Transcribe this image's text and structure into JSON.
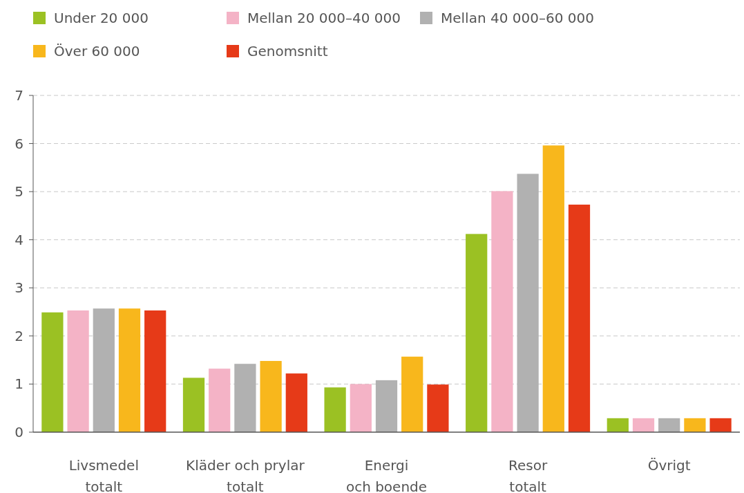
{
  "chart_data": {
    "type": "bar",
    "categories": [
      "Livsmedel\ntotalt",
      "Kläder och prylar\ntotalt",
      "Energi\noch boende",
      "Resor\ntotalt",
      "Övrigt"
    ],
    "series": [
      {
        "name": "Under 20 000",
        "color": "#9bc123",
        "values": [
          2.49,
          1.13,
          0.93,
          4.12,
          0.29
        ]
      },
      {
        "name": "Mellan 20 000–40 000",
        "color": "#f4b3c6",
        "values": [
          2.53,
          1.32,
          1.0,
          5.01,
          0.29
        ]
      },
      {
        "name": "Mellan 40 000–60 000",
        "color": "#b1b1b1",
        "values": [
          2.57,
          1.42,
          1.08,
          5.37,
          0.29
        ]
      },
      {
        "name": "Över 60 000",
        "color": "#f8b71c",
        "values": [
          2.57,
          1.48,
          1.57,
          5.96,
          0.29
        ]
      },
      {
        "name": "Genomsnitt",
        "color": "#e63a18",
        "values": [
          2.53,
          1.22,
          0.99,
          4.73,
          0.29
        ]
      }
    ],
    "ylim": [
      0,
      7
    ],
    "yticks": [
      0,
      1,
      2,
      3,
      4,
      5,
      6,
      7
    ],
    "grid": "y",
    "legend": "top"
  }
}
